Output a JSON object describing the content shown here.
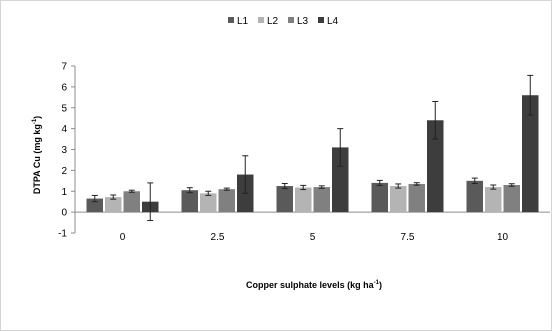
{
  "chart_data": {
    "type": "bar",
    "categories": [
      "0",
      "2.5",
      "5",
      "7.5",
      "10"
    ],
    "series": [
      {
        "name": "L1",
        "color": "#5a5a5a",
        "values": [
          0.65,
          1.05,
          1.25,
          1.4,
          1.5
        ],
        "errors": [
          0.15,
          0.12,
          0.12,
          0.12,
          0.13
        ]
      },
      {
        "name": "L2",
        "color": "#b4b4b4",
        "values": [
          0.72,
          0.9,
          1.18,
          1.25,
          1.2
        ],
        "errors": [
          0.1,
          0.1,
          0.1,
          0.1,
          0.1
        ]
      },
      {
        "name": "L3",
        "color": "#808080",
        "values": [
          1.0,
          1.1,
          1.2,
          1.35,
          1.3
        ],
        "errors": [
          0.05,
          0.05,
          0.06,
          0.06,
          0.06
        ]
      },
      {
        "name": "L4",
        "color": "#3d3d3d",
        "values": [
          0.5,
          1.8,
          3.1,
          4.4,
          5.6
        ],
        "errors": [
          0.9,
          0.9,
          0.9,
          0.9,
          0.95
        ]
      }
    ],
    "ylim": [
      -1,
      7
    ],
    "yticks": [
      "-1",
      "0",
      "1",
      "2",
      "3",
      "4",
      "5",
      "6",
      "7"
    ],
    "ylabel": {
      "text": "DTPA Cu (mg kg",
      "sup": "-1",
      "close": ")"
    },
    "xlabel": {
      "text": "Copper sulphate levels (kg ha",
      "sup": "-1",
      "close": ")"
    },
    "legend_position": "top-center",
    "grid": false
  }
}
